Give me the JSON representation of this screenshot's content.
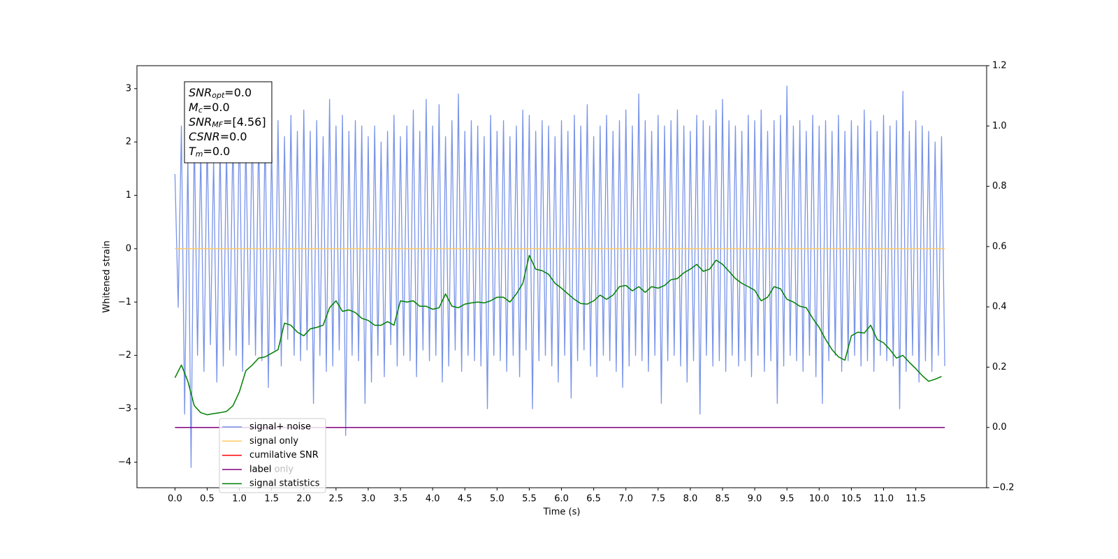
{
  "chart_data": {
    "type": "line",
    "xlabel": "Time (s)",
    "ylabel": "Whitened strain",
    "xlim": [
      -0.59,
      12.6
    ],
    "ylim": [
      -4.48,
      3.43
    ],
    "y2lim": [
      -0.2,
      1.2
    ],
    "xticks": [
      {
        "value": 0,
        "label": "0.0"
      },
      0.5,
      {
        "value": 1,
        "label": "1.0"
      },
      1.5,
      {
        "value": 2,
        "label": "2.0"
      },
      2.5,
      {
        "value": 3,
        "label": "3.0"
      },
      3.5,
      {
        "value": 4,
        "label": "4.0"
      },
      4.5,
      {
        "value": 5,
        "label": "5.0"
      },
      5.5,
      {
        "value": 6,
        "label": "6.0"
      },
      6.5,
      {
        "value": 7,
        "label": "7.0"
      },
      7.5,
      {
        "value": 8,
        "label": "8.0"
      },
      8.5,
      {
        "value": 9,
        "label": "9.0"
      },
      9.5,
      {
        "value": 10,
        "label": "10.0"
      },
      10.5,
      {
        "value": 11,
        "label": "11.0"
      },
      11.5
    ],
    "yticks": [
      {
        "value": -4,
        "label": "−4"
      },
      {
        "value": -3,
        "label": "−3"
      },
      {
        "value": -2,
        "label": "−2"
      },
      {
        "value": -1,
        "label": "−1"
      },
      0,
      1,
      2,
      3
    ],
    "y2ticks": [
      {
        "value": -0.2,
        "label": "−0.2"
      },
      {
        "value": 0,
        "label": "0.0"
      },
      0.2,
      0.4,
      0.6,
      0.8,
      {
        "value": 1,
        "label": "1.0"
      },
      1.2
    ],
    "annotation": [
      {
        "base": "SNR",
        "sub": "opt",
        "rest": "=0.0"
      },
      {
        "base": "M",
        "sub": "c",
        "rest": "=0.0"
      },
      {
        "base": "SNR",
        "sub": "MF",
        "rest": "=[4.56]"
      },
      {
        "base": "CSNR",
        "sub": "",
        "rest": "=0.0"
      },
      {
        "base": "T",
        "sub": "m",
        "rest": "=0.0"
      }
    ],
    "legend_overlap_text": "label only",
    "series": [
      {
        "name": "signal+ noise",
        "color": "#7994e8",
        "axis": "y",
        "x": [
          0,
          0.05,
          0.1,
          0.15,
          0.2,
          0.25,
          0.3,
          0.35,
          0.4,
          0.45,
          0.5,
          0.55,
          0.6,
          0.65,
          0.7,
          0.75,
          0.8,
          0.85,
          0.9,
          0.95,
          1,
          1.05,
          1.1,
          1.15,
          1.2,
          1.25,
          1.3,
          1.35,
          1.4,
          1.45,
          1.5,
          1.55,
          1.6,
          1.65,
          1.7,
          1.75,
          1.8,
          1.85,
          1.9,
          1.95,
          2,
          2.05,
          2.1,
          2.15,
          2.2,
          2.25,
          2.3,
          2.35,
          2.4,
          2.45,
          2.5,
          2.55,
          2.6,
          2.65,
          2.7,
          2.75,
          2.8,
          2.85,
          2.9,
          2.95,
          3,
          3.05,
          3.1,
          3.15,
          3.2,
          3.25,
          3.3,
          3.35,
          3.4,
          3.45,
          3.5,
          3.55,
          3.6,
          3.65,
          3.7,
          3.75,
          3.8,
          3.85,
          3.9,
          3.95,
          4,
          4.05,
          4.1,
          4.15,
          4.2,
          4.25,
          4.3,
          4.35,
          4.4,
          4.45,
          4.5,
          4.55,
          4.6,
          4.65,
          4.7,
          4.75,
          4.8,
          4.85,
          4.9,
          4.95,
          5,
          5.05,
          5.1,
          5.15,
          5.2,
          5.25,
          5.3,
          5.35,
          5.4,
          5.45,
          5.5,
          5.55,
          5.6,
          5.65,
          5.7,
          5.75,
          5.8,
          5.85,
          5.9,
          5.95,
          6,
          6.05,
          6.1,
          6.15,
          6.2,
          6.25,
          6.3,
          6.35,
          6.4,
          6.45,
          6.5,
          6.55,
          6.6,
          6.65,
          6.7,
          6.75,
          6.8,
          6.85,
          6.9,
          6.95,
          7,
          7.05,
          7.1,
          7.15,
          7.2,
          7.25,
          7.3,
          7.35,
          7.4,
          7.45,
          7.5,
          7.55,
          7.6,
          7.65,
          7.7,
          7.75,
          7.8,
          7.85,
          7.9,
          7.95,
          8,
          8.05,
          8.1,
          8.15,
          8.2,
          8.25,
          8.3,
          8.35,
          8.4,
          8.45,
          8.5,
          8.55,
          8.6,
          8.65,
          8.7,
          8.75,
          8.8,
          8.85,
          8.9,
          8.95,
          9,
          9.05,
          9.1,
          9.15,
          9.2,
          9.25,
          9.3,
          9.35,
          9.4,
          9.45,
          9.5,
          9.55,
          9.6,
          9.65,
          9.7,
          9.75,
          9.8,
          9.85,
          9.9,
          9.95,
          10,
          10.05,
          10.1,
          10.15,
          10.2,
          10.25,
          10.3,
          10.35,
          10.4,
          10.45,
          10.5,
          10.55,
          10.6,
          10.65,
          10.7,
          10.75,
          10.8,
          10.85,
          10.9,
          10.95,
          11,
          11.05,
          11.1,
          11.15,
          11.2,
          11.25,
          11.3,
          11.35,
          11.4,
          11.45,
          11.5,
          11.55,
          11.6,
          11.65,
          11.7,
          11.75,
          11.8,
          11.85,
          11.9,
          11.95
        ],
        "values": [
          1.4,
          -1.1,
          2.3,
          -3.1,
          1.8,
          -4.1,
          2.2,
          -2.0,
          1.9,
          -2.3,
          2.1,
          -1.8,
          1.7,
          -2.5,
          2.0,
          -2.2,
          1.9,
          -1.9,
          2.2,
          -2.0,
          2.5,
          -2.3,
          2.1,
          -1.8,
          2.4,
          -2.0,
          2.2,
          -2.1,
          2.3,
          -2.6,
          2.0,
          -1.9,
          2.4,
          -2.2,
          2.1,
          -1.7,
          2.5,
          -2.0,
          2.2,
          -2.1,
          2.6,
          -1.9,
          2.2,
          -2.9,
          2.4,
          -2.0,
          2.1,
          -2.3,
          2.8,
          -2.2,
          2.3,
          -1.9,
          2.5,
          -3.5,
          2.2,
          -2.0,
          2.4,
          -2.1,
          2.3,
          -2.9,
          2.1,
          -2.5,
          2.3,
          -2.0,
          2.0,
          -2.4,
          2.2,
          -1.8,
          2.5,
          -2.2,
          2.1,
          -2.0,
          2.3,
          -2.1,
          2.6,
          -2.4,
          2.2,
          -1.9,
          2.8,
          -2.1,
          2.3,
          -2.0,
          2.7,
          -2.5,
          2.1,
          -2.2,
          2.4,
          -1.9,
          2.9,
          -2.3,
          2.2,
          -2.0,
          2.4,
          -2.1,
          2.3,
          -2.2,
          2.1,
          -3.0,
          2.5,
          -2.0,
          2.2,
          -2.1,
          2.4,
          -2.3,
          2.1,
          -2.0,
          2.3,
          -2.4,
          2.6,
          -1.9,
          2.5,
          -3.0,
          2.2,
          -2.1,
          2.4,
          -2.0,
          2.3,
          -2.2,
          2.1,
          -2.5,
          2.4,
          -2.0,
          2.2,
          -2.8,
          2.5,
          -2.1,
          2.3,
          -1.9,
          2.7,
          -2.2,
          2.1,
          -2.4,
          2.3,
          -2.0,
          2.5,
          -2.1,
          2.2,
          -2.3,
          2.4,
          -2.6,
          2.6,
          -2.2,
          2.3,
          -2.0,
          2.9,
          -2.1,
          2.4,
          -2.3,
          2.2,
          -2.0,
          2.5,
          -2.9,
          2.3,
          -2.1,
          2.4,
          -2.0,
          2.6,
          -2.2,
          2.3,
          -2.5,
          2.2,
          -2.1,
          2.5,
          -3.1,
          2.4,
          -2.0,
          2.3,
          -2.2,
          2.6,
          -2.1,
          2.8,
          -2.3,
          2.4,
          -2.0,
          2.3,
          -2.2,
          2.2,
          -2.1,
          2.5,
          -2.4,
          2.4,
          -2.0,
          2.6,
          -2.3,
          2.2,
          -2.1,
          2.4,
          -2.9,
          2.5,
          -2.2,
          3.05,
          -2.0,
          2.3,
          -2.1,
          2.4,
          -2.3,
          2.2,
          -2.0,
          2.5,
          -2.4,
          2.3,
          -2.9,
          2.4,
          -2.1,
          2.2,
          -2.0,
          2.5,
          -2.3,
          2.2,
          -2.1,
          2.4,
          -2.0,
          2.3,
          -2.2,
          2.6,
          -2.1,
          2.4,
          -2.3,
          2.2,
          -2.0,
          2.5,
          -2.1,
          2.3,
          -2.2,
          2.4,
          -3.0,
          2.95,
          -2.3,
          2.2,
          -2.0,
          2.4,
          -2.5,
          2.3,
          -2.1,
          2.2,
          -2.3,
          2.0,
          -2.0,
          2.1,
          -2.2
        ]
      },
      {
        "name": "signal only",
        "color": "#ffc966",
        "axis": "y",
        "x": [
          0,
          11.95
        ],
        "values": [
          0,
          0
        ]
      },
      {
        "name": "cumilative SNR",
        "color": "#ff0000",
        "axis": "y",
        "x": [],
        "values": []
      },
      {
        "name": "label",
        "color": "#800080",
        "axis": "y2",
        "x": [
          0,
          11.95
        ],
        "values": [
          0,
          0
        ]
      },
      {
        "name": "signal statistics",
        "color": "#008000",
        "axis": "y2",
        "x": [
          0,
          0.1,
          0.2,
          0.3,
          0.4,
          0.5,
          0.6,
          0.7,
          0.8,
          0.9,
          1,
          1.1,
          1.2,
          1.3,
          1.4,
          1.5,
          1.6,
          1.7,
          1.8,
          1.9,
          2,
          2.1,
          2.2,
          2.3,
          2.4,
          2.5,
          2.6,
          2.7,
          2.8,
          2.9,
          3,
          3.1,
          3.2,
          3.3,
          3.4,
          3.5,
          3.6,
          3.7,
          3.8,
          3.9,
          4,
          4.1,
          4.2,
          4.3,
          4.4,
          4.5,
          4.6,
          4.7,
          4.8,
          4.9,
          5,
          5.1,
          5.2,
          5.3,
          5.4,
          5.5,
          5.6,
          5.7,
          5.8,
          5.9,
          6,
          6.1,
          6.2,
          6.3,
          6.4,
          6.5,
          6.6,
          6.7,
          6.8,
          6.9,
          7,
          7.1,
          7.2,
          7.3,
          7.4,
          7.5,
          7.6,
          7.7,
          7.8,
          7.9,
          8,
          8.1,
          8.2,
          8.3,
          8.4,
          8.5,
          8.6,
          8.7,
          8.8,
          8.9,
          9,
          9.1,
          9.2,
          9.3,
          9.4,
          9.5,
          9.6,
          9.7,
          9.8,
          9.9,
          10,
          10.1,
          10.2,
          10.3,
          10.4,
          10.5,
          10.6,
          10.7,
          10.8,
          10.9,
          11,
          11.1,
          11.2,
          11.3,
          11.4,
          11.5,
          11.6,
          11.7,
          11.8,
          11.9
        ],
        "values": [
          0.165,
          0.207,
          0.153,
          0.072,
          0.049,
          0.042,
          0.046,
          0.049,
          0.053,
          0.072,
          0.118,
          0.188,
          0.207,
          0.23,
          0.234,
          0.246,
          0.258,
          0.346,
          0.339,
          0.316,
          0.304,
          0.327,
          0.332,
          0.339,
          0.397,
          0.42,
          0.385,
          0.39,
          0.381,
          0.362,
          0.355,
          0.339,
          0.339,
          0.351,
          0.339,
          0.42,
          0.416,
          0.42,
          0.402,
          0.402,
          0.392,
          0.397,
          0.443,
          0.402,
          0.397,
          0.409,
          0.413,
          0.416,
          0.413,
          0.42,
          0.432,
          0.432,
          0.416,
          0.443,
          0.478,
          0.571,
          0.525,
          0.52,
          0.508,
          0.478,
          0.462,
          0.443,
          0.425,
          0.411,
          0.409,
          0.42,
          0.439,
          0.425,
          0.439,
          0.467,
          0.471,
          0.453,
          0.467,
          0.448,
          0.467,
          0.462,
          0.471,
          0.49,
          0.494,
          0.513,
          0.525,
          0.541,
          0.518,
          0.525,
          0.555,
          0.541,
          0.518,
          0.494,
          0.478,
          0.467,
          0.455,
          0.42,
          0.432,
          0.467,
          0.46,
          0.425,
          0.416,
          0.402,
          0.397,
          0.362,
          0.332,
          0.292,
          0.258,
          0.234,
          0.223,
          0.304,
          0.316,
          0.313,
          0.339,
          0.292,
          0.281,
          0.258,
          0.23,
          0.239,
          0.216,
          0.195,
          0.172,
          0.153,
          0.16,
          0.169
        ]
      }
    ]
  }
}
